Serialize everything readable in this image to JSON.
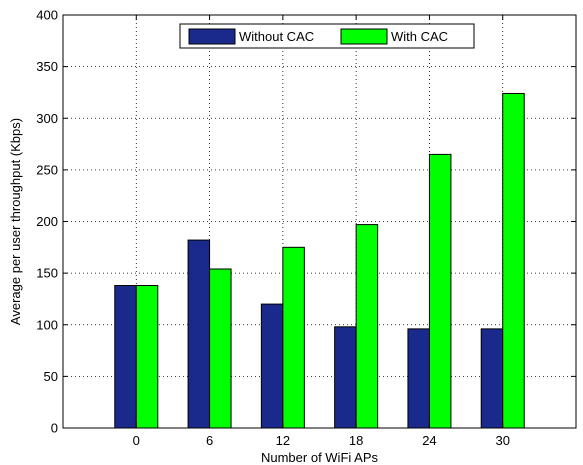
{
  "chart_data": {
    "type": "bar",
    "xlabel": "Number of WiFi APs",
    "ylabel": "Average per user throughput (Kbps)",
    "categories": [
      "0",
      "6",
      "12",
      "18",
      "24",
      "30"
    ],
    "ylim": [
      0,
      400
    ],
    "yticks": [
      "0",
      "50",
      "100",
      "150",
      "200",
      "250",
      "300",
      "350",
      "400"
    ],
    "grid": true,
    "legend_position": "top",
    "series": [
      {
        "name": "Without CAC",
        "color": "#1a2a8c",
        "values": [
          138,
          182,
          120,
          98,
          96,
          96
        ]
      },
      {
        "name": "With CAC",
        "color": "#00ff00",
        "values": [
          138,
          154,
          175,
          197,
          265,
          324
        ]
      }
    ]
  }
}
